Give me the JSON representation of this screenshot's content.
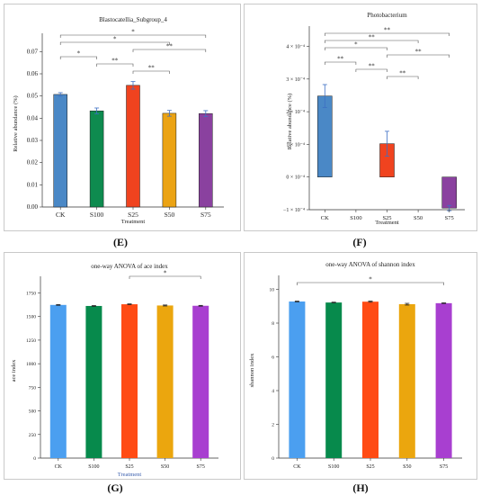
{
  "panel_labels": {
    "E": "(E)",
    "F": "(F)",
    "G": "(G)",
    "H": "(H)"
  },
  "chart_data": [
    {
      "type": "bar",
      "title": "Blastocatellia_Subgroup_4",
      "xlabel": "Treatment",
      "ylabel": "Relative abundance (%)",
      "categories": [
        "CK",
        "S100",
        "S25",
        "S50",
        "S75"
      ],
      "values": [
        0.0507,
        0.0433,
        0.0548,
        0.0422,
        0.0421
      ],
      "errors": [
        0.0008,
        0.0013,
        0.0017,
        0.0013,
        0.0013
      ],
      "colors": [
        "#4a88c6",
        "#0e8b4f",
        "#f0431f",
        "#eba314",
        "#8a419f"
      ],
      "ylim": [
        0,
        0.075
      ],
      "ytick_labels": [
        "0.00",
        "0.01",
        "0.02",
        "0.03",
        "0.04",
        "0.05",
        "0.06",
        "0.07"
      ],
      "ytick_values": [
        0,
        0.01,
        0.02,
        0.03,
        0.04,
        0.05,
        0.06,
        0.07
      ],
      "significance": [
        {
          "from": 0,
          "to": 4,
          "label": "*"
        },
        {
          "from": 0,
          "to": 3,
          "label": "*"
        },
        {
          "from": 2,
          "to": 4,
          "label": "**"
        },
        {
          "from": 0,
          "to": 1,
          "label": "*"
        },
        {
          "from": 1,
          "to": 2,
          "label": "**"
        },
        {
          "from": 2,
          "to": 3,
          "label": "**"
        }
      ]
    },
    {
      "type": "bar",
      "title": "Photobacterium",
      "xlabel": "Treatment",
      "ylabel": "Relative abundance (%)",
      "categories": [
        "CK",
        "S100",
        "S25",
        "S50",
        "S75"
      ],
      "values": [
        0.000248,
        0,
        0.000102,
        0,
        -9.5e-05
      ],
      "errors": [
        3.5e-05,
        0,
        3.8e-05,
        0,
        8e-06
      ],
      "colors": [
        "#4a88c6",
        "#0e8b4f",
        "#f0431f",
        "#eba314",
        "#8a419f"
      ],
      "ylim": [
        -0.0001,
        0.00044
      ],
      "ytick_labels": [
        "−1 × 10⁻⁴",
        "0 × 10⁻⁴",
        "1 × 10⁻⁴",
        "2 × 10⁻⁴",
        "3 × 10⁻⁴",
        "4 × 10⁻⁴"
      ],
      "ytick_values": [
        -0.0001,
        0,
        0.0001,
        0.0002,
        0.0003,
        0.0004
      ],
      "significance": [
        {
          "from": 0,
          "to": 4,
          "label": "**"
        },
        {
          "from": 0,
          "to": 3,
          "label": "**"
        },
        {
          "from": 0,
          "to": 2,
          "label": "*"
        },
        {
          "from": 2,
          "to": 4,
          "label": "**"
        },
        {
          "from": 0,
          "to": 1,
          "label": "**"
        },
        {
          "from": 1,
          "to": 2,
          "label": "**"
        },
        {
          "from": 2,
          "to": 3,
          "label": "**"
        }
      ]
    },
    {
      "type": "bar",
      "title": "one-way ANOVA of ace index",
      "xlabel": "Treatment",
      "ylabel": "ace index",
      "categories": [
        "CK",
        "S100",
        "S25",
        "S50",
        "S75"
      ],
      "values": [
        1623,
        1612,
        1630,
        1617,
        1614
      ],
      "errors": [
        4,
        4,
        4,
        5,
        4
      ],
      "colors": [
        "#4b9ff0",
        "#078a4c",
        "#ff4b14",
        "#eba60e",
        "#a83fd0"
      ],
      "ylim": [
        0,
        1850
      ],
      "ytick_labels": [
        "0",
        "250",
        "500",
        "750",
        "1000",
        "1250",
        "1500",
        "1750"
      ],
      "ytick_values": [
        0,
        250,
        500,
        750,
        1000,
        1250,
        1500,
        1750
      ],
      "significance": [
        {
          "from": 2,
          "to": 4,
          "label": "*"
        }
      ]
    },
    {
      "type": "bar",
      "title": "one-way ANOVA of shannon index",
      "xlabel": "",
      "ylabel": "shannon index",
      "categories": [
        "CK",
        "S100",
        "S25",
        "S50",
        "S75"
      ],
      "values": [
        9.28,
        9.22,
        9.27,
        9.12,
        9.18
      ],
      "errors": [
        0.02,
        0.02,
        0.03,
        0.05,
        0.02
      ],
      "colors": [
        "#4b9ff0",
        "#078a4c",
        "#ff4b14",
        "#eba60e",
        "#a83fd0"
      ],
      "ylim": [
        0,
        10.4
      ],
      "ytick_labels": [
        "0",
        "2",
        "4",
        "6",
        "8",
        "10"
      ],
      "ytick_values": [
        0,
        2,
        4,
        6,
        8,
        10
      ],
      "significance": [
        {
          "from": 0,
          "to": 4,
          "label": "*"
        }
      ]
    }
  ]
}
